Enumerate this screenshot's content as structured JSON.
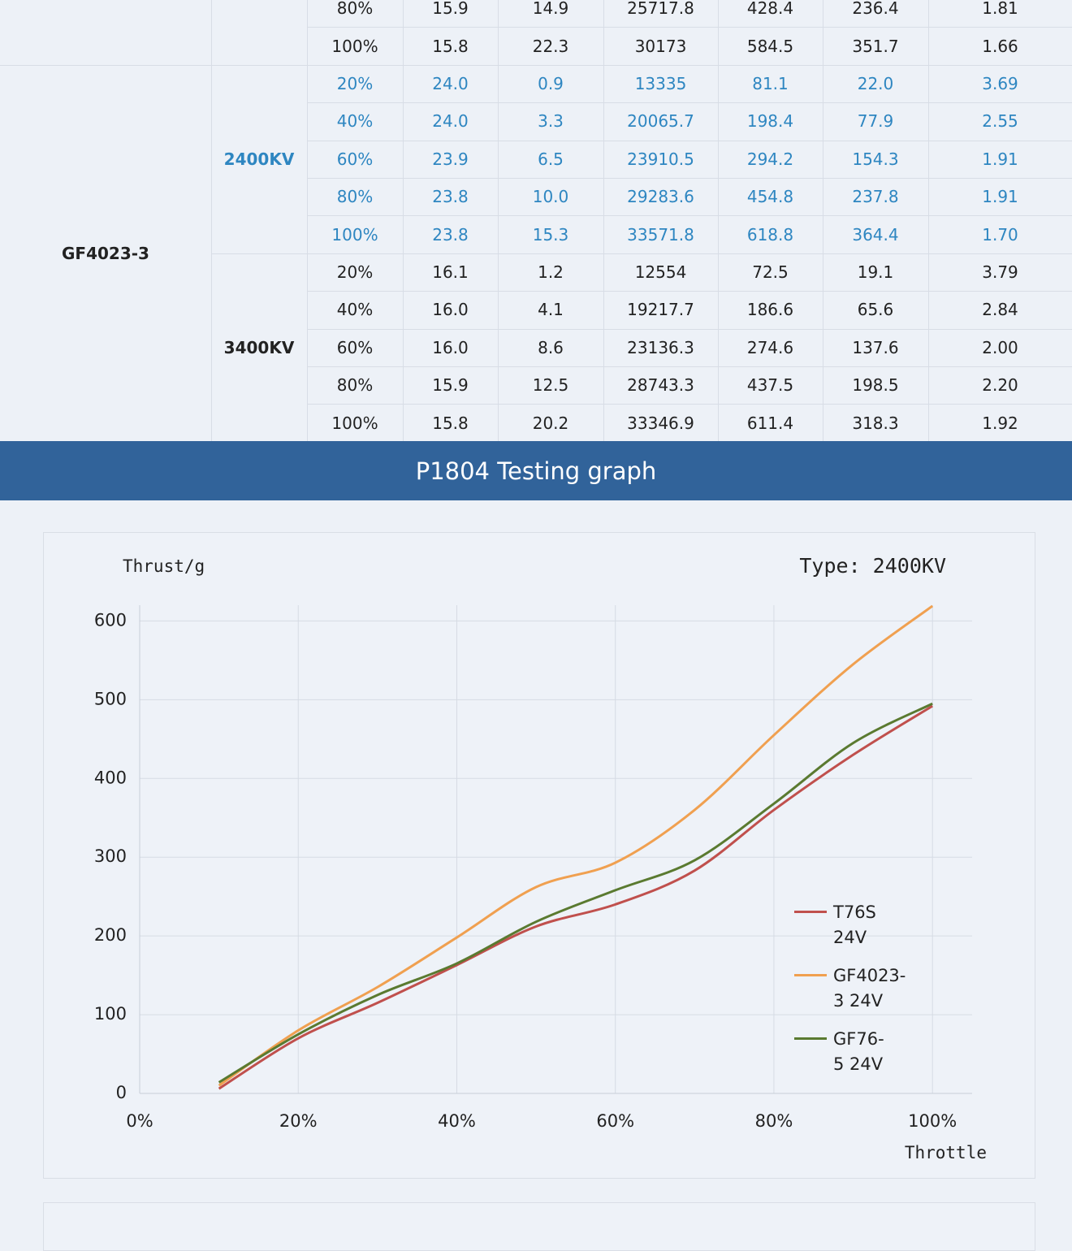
{
  "table": {
    "lead_rows": [
      [
        "80%",
        "15.9",
        "14.9",
        "25717.8",
        "428.4",
        "236.4",
        "1.81"
      ],
      [
        "100%",
        "15.8",
        "22.3",
        "30173",
        "584.5",
        "351.7",
        "1.66"
      ]
    ],
    "motor": "GF4023-3",
    "variants": [
      {
        "kv": "2400KV",
        "color": "#2e86c1",
        "rows": [
          [
            "20%",
            "24.0",
            "0.9",
            "13335",
            "81.1",
            "22.0",
            "3.69"
          ],
          [
            "40%",
            "24.0",
            "3.3",
            "20065.7",
            "198.4",
            "77.9",
            "2.55"
          ],
          [
            "60%",
            "23.9",
            "6.5",
            "23910.5",
            "294.2",
            "154.3",
            "1.91"
          ],
          [
            "80%",
            "23.8",
            "10.0",
            "29283.6",
            "454.8",
            "237.8",
            "1.91"
          ],
          [
            "100%",
            "23.8",
            "15.3",
            "33571.8",
            "618.8",
            "364.4",
            "1.70"
          ]
        ]
      },
      {
        "kv": "3400KV",
        "color": "#222222",
        "rows": [
          [
            "20%",
            "16.1",
            "1.2",
            "12554",
            "72.5",
            "19.1",
            "3.79"
          ],
          [
            "40%",
            "16.0",
            "4.1",
            "19217.7",
            "186.6",
            "65.6",
            "2.84"
          ],
          [
            "60%",
            "16.0",
            "8.6",
            "23136.3",
            "274.6",
            "137.6",
            "2.00"
          ],
          [
            "80%",
            "15.9",
            "12.5",
            "28743.3",
            "437.5",
            "198.5",
            "2.20"
          ],
          [
            "100%",
            "15.8",
            "20.2",
            "33346.9",
            "611.4",
            "318.3",
            "1.92"
          ]
        ]
      }
    ]
  },
  "banner": {
    "title": "P1804 Testing graph"
  },
  "chart_data": {
    "type": "line",
    "y_label": "Thrust/g",
    "x_label": "Throttle",
    "annotation": "Type: 2400KV",
    "x": [
      10,
      20,
      30,
      40,
      50,
      60,
      70,
      80,
      90,
      100
    ],
    "series": [
      {
        "name": "T76S 24V",
        "color": "#c0504d",
        "values": [
          6,
          70,
          115,
          163,
          212,
          240,
          283,
          360,
          430,
          492
        ]
      },
      {
        "name": "GF4023-3 24V",
        "color": "#f0a050",
        "values": [
          10,
          80,
          135,
          198,
          262,
          293,
          360,
          455,
          545,
          619
        ]
      },
      {
        "name": "GF76-5 24V",
        "color": "#5a7a30",
        "values": [
          14,
          75,
          125,
          165,
          218,
          258,
          296,
          368,
          445,
          495
        ]
      }
    ],
    "xlim": [
      0,
      105
    ],
    "ylim": [
      0,
      620
    ],
    "xticks": [
      {
        "value": 0,
        "label": "0%"
      },
      {
        "value": 20,
        "label": "20%"
      },
      {
        "value": 40,
        "label": "40%"
      },
      {
        "value": 60,
        "label": "60%"
      },
      {
        "value": 80,
        "label": "80%"
      },
      {
        "value": 100,
        "label": "100%"
      }
    ],
    "yticks": [
      0,
      100,
      200,
      300,
      400,
      500,
      600
    ],
    "grid": true,
    "legend": "right"
  }
}
